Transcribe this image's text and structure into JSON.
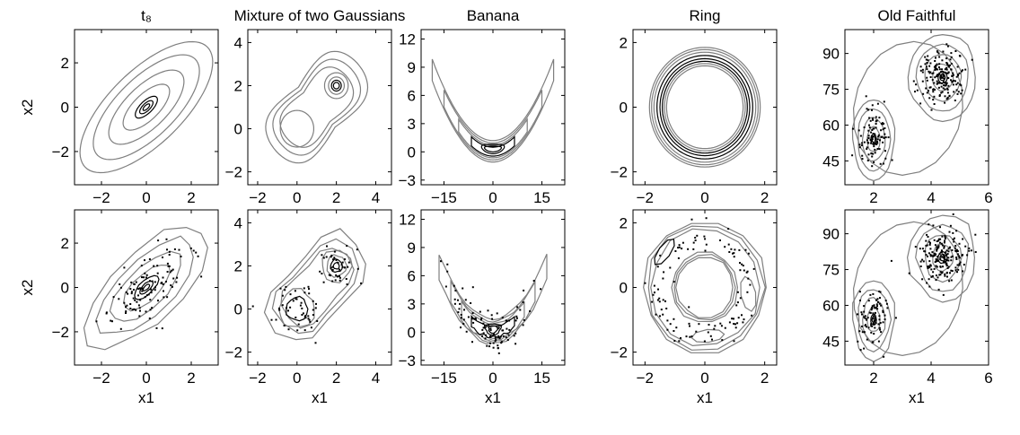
{
  "figure": {
    "contour_color_light": "#7f7f7f",
    "contour_color_dark": "#000000",
    "point_color": "#000000"
  },
  "chart_data": [
    {
      "type": "contour",
      "row": "true density",
      "title": "t₈",
      "xlabel": "",
      "ylabel": "x2",
      "xlim": [
        -3.2,
        3.2
      ],
      "ylim": [
        -3.5,
        3.5
      ],
      "xticks": [
        -2,
        0,
        2
      ],
      "yticks": [
        -2,
        0,
        2
      ],
      "tick_labels_x": [
        "−2",
        "0",
        "2"
      ],
      "tick_labels_y": [
        "−2",
        "0",
        "2"
      ],
      "shape": "ellipse",
      "cx": 0,
      "cy": 0,
      "rho": 0.7,
      "points": 0
    },
    {
      "type": "contour",
      "row": "true density",
      "title": "Mixture of two Gaussians",
      "xlabel": "",
      "ylabel": "",
      "xlim": [
        -2.5,
        4.8
      ],
      "ylim": [
        -2.6,
        4.6
      ],
      "xticks": [
        -2,
        0,
        2,
        4
      ],
      "yticks": [
        -2,
        0,
        2,
        4
      ],
      "tick_labels_x": [
        "−2",
        "0",
        "2",
        "4"
      ],
      "tick_labels_y": [
        "−2",
        "0",
        "2",
        "4"
      ],
      "shape": "mixture",
      "means": [
        [
          0,
          0
        ],
        [
          2,
          2
        ]
      ],
      "points": 0
    },
    {
      "type": "contour",
      "row": "true density",
      "title": "Banana",
      "xlabel": "",
      "ylabel": "",
      "xlim": [
        -22,
        22
      ],
      "ylim": [
        -3.5,
        13
      ],
      "xticks": [
        -15,
        0,
        15
      ],
      "yticks": [
        -3,
        0,
        3,
        6,
        9,
        12
      ],
      "tick_labels_x": [
        "−15",
        "0",
        "15"
      ],
      "tick_labels_y": [
        "−3",
        "0",
        "3",
        "6",
        "9",
        "12"
      ],
      "shape": "banana",
      "points": 0
    },
    {
      "type": "contour",
      "row": "true density",
      "title": "Ring",
      "xlabel": "",
      "ylabel": "",
      "xlim": [
        -2.4,
        2.4
      ],
      "ylim": [
        -2.4,
        2.4
      ],
      "xticks": [
        -2,
        0,
        2
      ],
      "yticks": [
        -2,
        0,
        2
      ],
      "tick_labels_x": [
        "−2",
        "0",
        "2"
      ],
      "tick_labels_y": [
        "−2",
        "0",
        "2"
      ],
      "shape": "ring",
      "radius": 1.5,
      "points": 0
    },
    {
      "type": "contour",
      "row": "true density",
      "title": "Old Faithful",
      "xlabel": "",
      "ylabel": "",
      "xlim": [
        1,
        6
      ],
      "ylim": [
        35,
        100
      ],
      "xticks": [
        2,
        4,
        6
      ],
      "yticks": [
        45,
        60,
        75,
        90
      ],
      "tick_labels_x": [
        "2",
        "4",
        "6"
      ],
      "tick_labels_y": [
        "45",
        "60",
        "75",
        "90"
      ],
      "shape": "faithful",
      "points": 272
    },
    {
      "type": "contour",
      "row": "estimated density",
      "title": "",
      "xlabel": "x1",
      "ylabel": "x2",
      "xlim": [
        -3.2,
        3.2
      ],
      "ylim": [
        -3.5,
        3.5
      ],
      "xticks": [
        -2,
        0,
        2
      ],
      "yticks": [
        -2,
        0,
        2
      ],
      "tick_labels_x": [
        "−2",
        "0",
        "2"
      ],
      "tick_labels_y": [
        "−2",
        "0",
        "2"
      ],
      "shape": "ellipse",
      "cx": 0,
      "cy": 0,
      "rho": 0.7,
      "points": 110
    },
    {
      "type": "contour",
      "row": "estimated density",
      "title": "",
      "xlabel": "x1",
      "ylabel": "",
      "xlim": [
        -2.5,
        4.8
      ],
      "ylim": [
        -2.6,
        4.6
      ],
      "xticks": [
        -2,
        0,
        2,
        4
      ],
      "yticks": [
        -2,
        0,
        2,
        4
      ],
      "tick_labels_x": [
        "−2",
        "0",
        "2",
        "4"
      ],
      "tick_labels_y": [
        "−2",
        "0",
        "2",
        "4"
      ],
      "shape": "mixture",
      "means": [
        [
          0,
          0
        ],
        [
          2,
          2
        ]
      ],
      "points": 90
    },
    {
      "type": "contour",
      "row": "estimated density",
      "title": "",
      "xlabel": "x1",
      "ylabel": "",
      "xlim": [
        -22,
        22
      ],
      "ylim": [
        -3.5,
        13
      ],
      "xticks": [
        -15,
        0,
        15
      ],
      "yticks": [
        -3,
        0,
        3,
        6,
        9,
        12
      ],
      "tick_labels_x": [
        "−15",
        "0",
        "15"
      ],
      "tick_labels_y": [
        "−3",
        "0",
        "3",
        "6",
        "9",
        "12"
      ],
      "shape": "banana",
      "points": 100
    },
    {
      "type": "contour",
      "row": "estimated density",
      "title": "",
      "xlabel": "x1",
      "ylabel": "",
      "xlim": [
        -2.4,
        2.4
      ],
      "ylim": [
        -2.4,
        2.4
      ],
      "xticks": [
        -2,
        0,
        2
      ],
      "yticks": [
        -2,
        0,
        2
      ],
      "tick_labels_x": [
        "−2",
        "0",
        "2"
      ],
      "tick_labels_y": [
        "−2",
        "0",
        "2"
      ],
      "shape": "ring",
      "radius": 1.5,
      "points": 110
    },
    {
      "type": "contour",
      "row": "estimated density",
      "title": "",
      "xlabel": "x1",
      "ylabel": "",
      "xlim": [
        1,
        6
      ],
      "ylim": [
        35,
        100
      ],
      "xticks": [
        2,
        4,
        6
      ],
      "yticks": [
        45,
        60,
        75,
        90
      ],
      "tick_labels_x": [
        "2",
        "4",
        "6"
      ],
      "tick_labels_y": [
        "45",
        "60",
        "75",
        "90"
      ],
      "shape": "faithful",
      "points": 272
    }
  ]
}
